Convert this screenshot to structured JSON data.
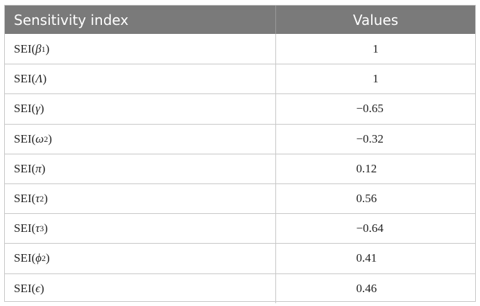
{
  "table": {
    "headers": [
      "Sensitivity index",
      "Values"
    ],
    "rows": [
      {
        "prefix": "SEI(",
        "symbol": "β",
        "sub": "1",
        "suffix": ")",
        "value": "1"
      },
      {
        "prefix": "SEI(",
        "symbol": "Λ",
        "sub": "",
        "suffix": ")",
        "value": "1"
      },
      {
        "prefix": "SEI(",
        "symbol": "γ",
        "sub": "",
        "suffix": ")",
        "value": "−0.65"
      },
      {
        "prefix": "SEI(",
        "symbol": "ω",
        "sub": "2",
        "suffix": ")",
        "value": "−0.32"
      },
      {
        "prefix": "SEI(",
        "symbol": "π",
        "sub": "",
        "suffix": ")",
        "value": "0.12"
      },
      {
        "prefix": "SEI(",
        "symbol": "τ",
        "sub": "2",
        "suffix": ")",
        "value": "0.56"
      },
      {
        "prefix": "SEI(",
        "symbol": "τ",
        "sub": "3",
        "suffix": ")",
        "value": "−0.64"
      },
      {
        "prefix": "SEI(",
        "symbol": "ϕ",
        "sub": "2",
        "suffix": ")",
        "value": "0.41"
      },
      {
        "prefix": "SEI(",
        "symbol": "ϵ",
        "sub": "",
        "suffix": ")",
        "value": "0.46"
      }
    ]
  },
  "colors": {
    "header_bg": "#7a7a7a",
    "header_text": "#ffffff",
    "grid": "#c7c7c7"
  }
}
